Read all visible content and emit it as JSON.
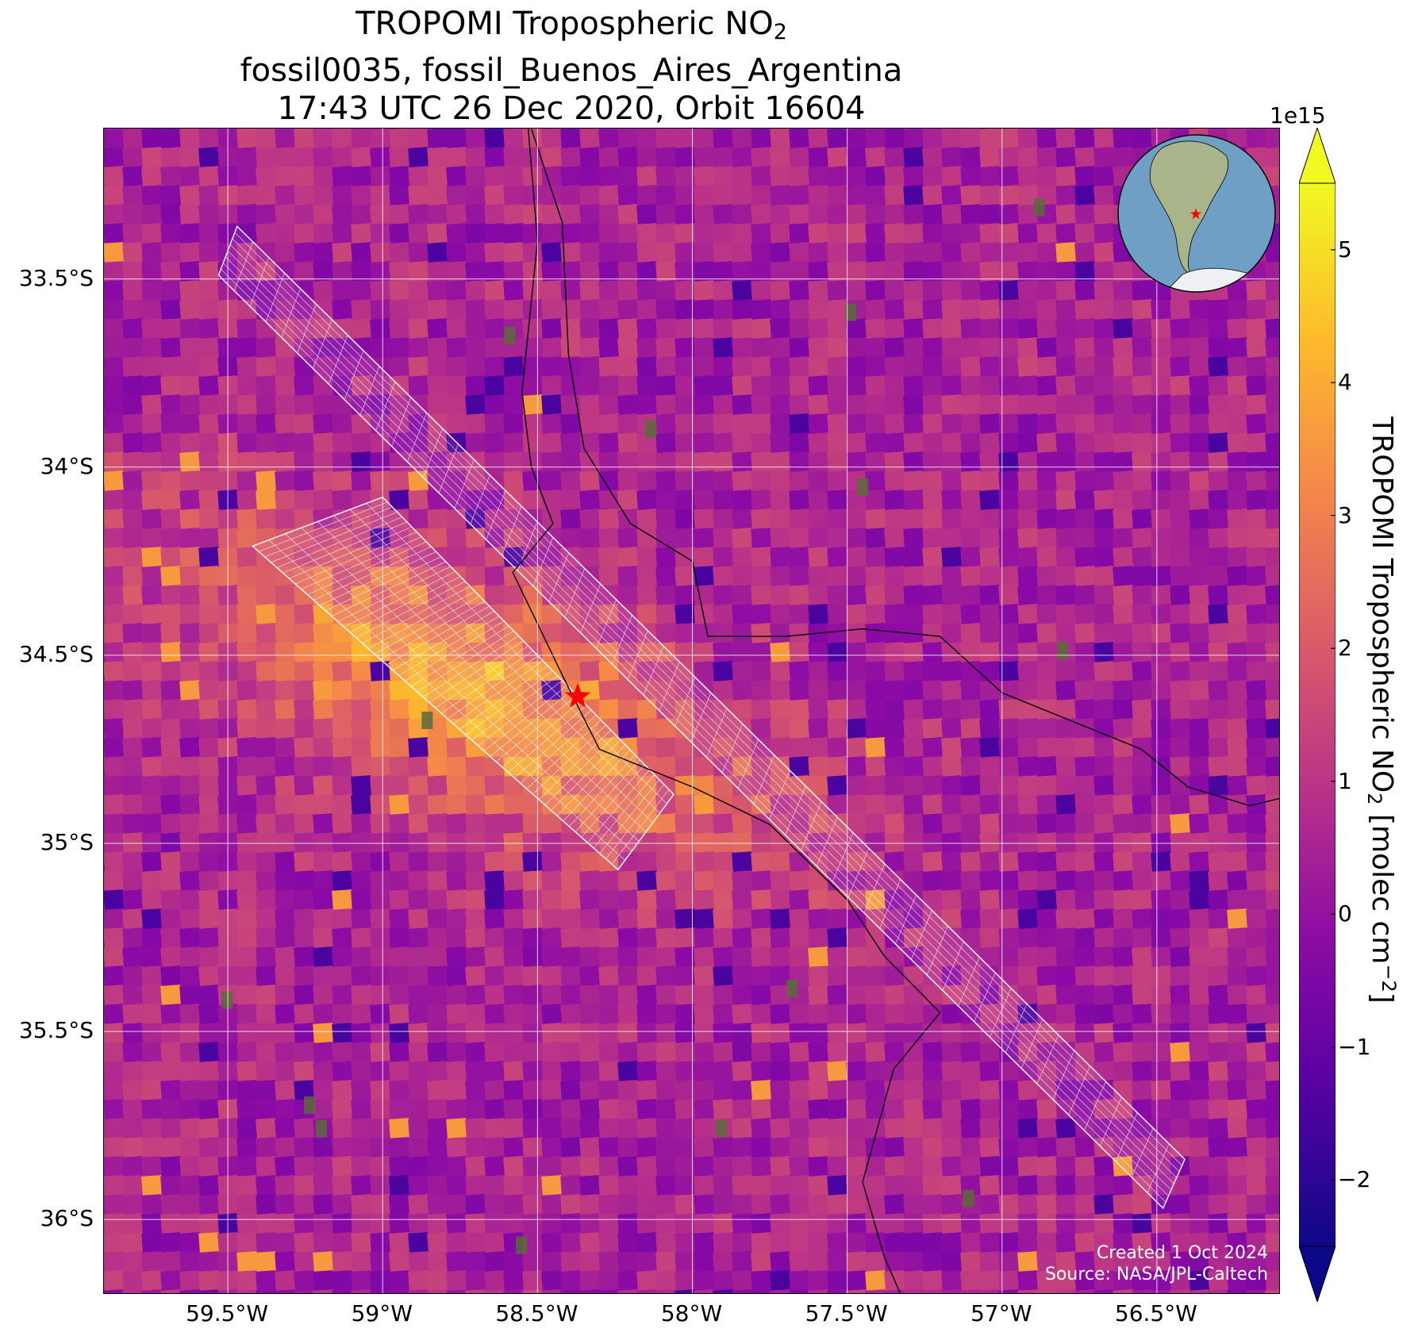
{
  "title": {
    "line1_main": "TROPOMI Tropospheric NO",
    "line1_sub": "2",
    "line2": "fossil0035, fossil_Buenos_Aires_Argentina",
    "line3": "17:43 UTC 26 Dec 2020, Orbit 16604"
  },
  "map": {
    "lon_range": [
      -59.9,
      -56.1
    ],
    "lat_range": [
      -36.2,
      -33.1
    ],
    "lat_ticks": [
      {
        "value": -33.5,
        "label": "33.5°S"
      },
      {
        "value": -34.0,
        "label": "34°S"
      },
      {
        "value": -34.5,
        "label": "34.5°S"
      },
      {
        "value": -35.0,
        "label": "35°S"
      },
      {
        "value": -35.5,
        "label": "35.5°S"
      },
      {
        "value": -36.0,
        "label": "36°S"
      }
    ],
    "lon_ticks": [
      {
        "value": -59.5,
        "label": "59.5°W"
      },
      {
        "value": -59.0,
        "label": "59°W"
      },
      {
        "value": -58.5,
        "label": "58.5°W"
      },
      {
        "value": -58.0,
        "label": "58°W"
      },
      {
        "value": -57.5,
        "label": "57.5°W"
      },
      {
        "value": -57.0,
        "label": "57°W"
      },
      {
        "value": -56.5,
        "label": "56.5°W"
      }
    ],
    "grid": true,
    "site_marker": {
      "lon": -58.37,
      "lat": -34.61,
      "symbol": "star",
      "color": "#ff0000"
    },
    "background_color": "#a8359b",
    "plume_color": "#f5a33d",
    "credit_line1": "Created 1 Oct 2024",
    "credit_line2": "Source: NASA/JPL-Caltech",
    "inset_globe": {
      "center": "South America",
      "marker_color": "#ff0000"
    }
  },
  "colorbar": {
    "colormap": "plasma",
    "range": [
      -2.5,
      5.5
    ],
    "extend": "both",
    "ticks": [
      {
        "value": 5,
        "label": "5"
      },
      {
        "value": 4,
        "label": "4"
      },
      {
        "value": 3,
        "label": "3"
      },
      {
        "value": 2,
        "label": "2"
      },
      {
        "value": 1,
        "label": "1"
      },
      {
        "value": 0,
        "label": "0"
      },
      {
        "value": -1,
        "label": "−1"
      },
      {
        "value": -2,
        "label": "−2"
      }
    ],
    "exponent": "1e15",
    "label_main": "TROPOMI Tropospheric NO",
    "label_sub": "2",
    "label_units": " [molec cm",
    "label_sup": "−2",
    "label_end": "]"
  }
}
